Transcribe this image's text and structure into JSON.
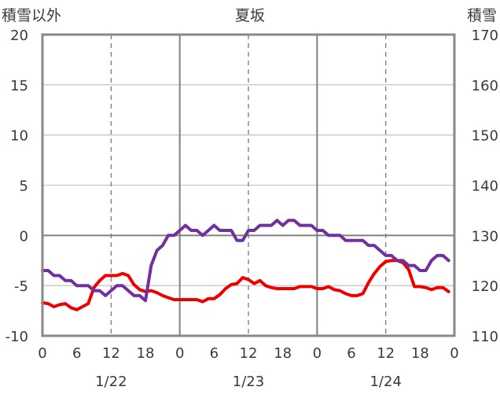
{
  "chart_data": {
    "type": "line",
    "title": "夏坂",
    "ylabel_left": "積雪以外",
    "ylabel_right": "積雪",
    "ylim_left": [
      -10,
      20
    ],
    "ylim_right": [
      110,
      170
    ],
    "yticks_left": [
      "20",
      "15",
      "10",
      "5",
      "0",
      "-5",
      "-10"
    ],
    "yticks_right": [
      "170",
      "160",
      "150",
      "140",
      "130",
      "120",
      "110"
    ],
    "xlim_hours": [
      0,
      72
    ],
    "xticks": [
      "0",
      "6",
      "12",
      "18",
      "0",
      "6",
      "12",
      "18",
      "0",
      "6",
      "12",
      "18",
      "0"
    ],
    "date_labels": [
      "1/22",
      "1/23",
      "1/24"
    ],
    "grid": "dashed vertical lines at 12:00, solid at 0:00, solid horizontal line at 0",
    "series": [
      {
        "color": "#ee0000",
        "axis": "left",
        "x": [
          0,
          1,
          2,
          3,
          4,
          5,
          6,
          7,
          8,
          9,
          10,
          11,
          12,
          13,
          14,
          15,
          16,
          17,
          18,
          19,
          20,
          21,
          22,
          23,
          24,
          25,
          26,
          27,
          28,
          29,
          30,
          31,
          32,
          33,
          34,
          35,
          36,
          37,
          38,
          39,
          40,
          41,
          42,
          43,
          44,
          45,
          46,
          47,
          48,
          49,
          50,
          51,
          52,
          53,
          54,
          55,
          56,
          57,
          58,
          59,
          60,
          61,
          62,
          63,
          64,
          65,
          66,
          67,
          68,
          69,
          70,
          71
        ],
        "values": [
          -6.7,
          -6.8,
          -7.1,
          -6.9,
          -6.8,
          -7.2,
          -7.4,
          -7.1,
          -6.8,
          -5.2,
          -4.5,
          -4.0,
          -4.0,
          -4.0,
          -3.8,
          -4.0,
          -4.9,
          -5.4,
          -5.6,
          -5.5,
          -5.7,
          -6.0,
          -6.2,
          -6.4,
          -6.4,
          -6.4,
          -6.4,
          -6.4,
          -6.6,
          -6.3,
          -6.3,
          -5.9,
          -5.3,
          -4.9,
          -4.8,
          -4.2,
          -4.4,
          -4.8,
          -4.5,
          -5.0,
          -5.2,
          -5.3,
          -5.3,
          -5.3,
          -5.3,
          -5.1,
          -5.1,
          -5.1,
          -5.3,
          -5.3,
          -5.1,
          -5.4,
          -5.5,
          -5.8,
          -6.0,
          -6.0,
          -5.8,
          -4.7,
          -3.8,
          -3.1,
          -2.6,
          -2.5,
          -2.5,
          -2.7,
          -3.4,
          -5.1,
          -5.1,
          -5.2,
          -5.4,
          -5.2,
          -5.2,
          -5.6
        ]
      },
      {
        "color": "#7030a0",
        "axis": "right",
        "x": [
          0,
          1,
          2,
          3,
          4,
          5,
          6,
          7,
          8,
          9,
          10,
          11,
          12,
          13,
          14,
          15,
          16,
          17,
          18,
          19,
          20,
          21,
          22,
          23,
          24,
          25,
          26,
          27,
          28,
          29,
          30,
          31,
          32,
          33,
          34,
          35,
          36,
          37,
          38,
          39,
          40,
          41,
          42,
          43,
          44,
          45,
          46,
          47,
          48,
          49,
          50,
          51,
          52,
          53,
          54,
          55,
          56,
          57,
          58,
          59,
          60,
          61,
          62,
          63,
          64,
          65,
          66,
          67,
          68,
          69,
          70,
          71
        ],
        "values": [
          123,
          123,
          122,
          122,
          121,
          121,
          120,
          120,
          120,
          119,
          119,
          118,
          119,
          120,
          120,
          119,
          118,
          118,
          117,
          124,
          127,
          128,
          130,
          130,
          131,
          132,
          131,
          131,
          130,
          131,
          132,
          131,
          131,
          131,
          129,
          129,
          131,
          131,
          132,
          132,
          132,
          133,
          132,
          133,
          133,
          132,
          132,
          132,
          131,
          131,
          130,
          130,
          130,
          129,
          129,
          129,
          129,
          128,
          128,
          127,
          126,
          126,
          125,
          125,
          124,
          124,
          123,
          123,
          125,
          126,
          126,
          125
        ]
      }
    ]
  }
}
